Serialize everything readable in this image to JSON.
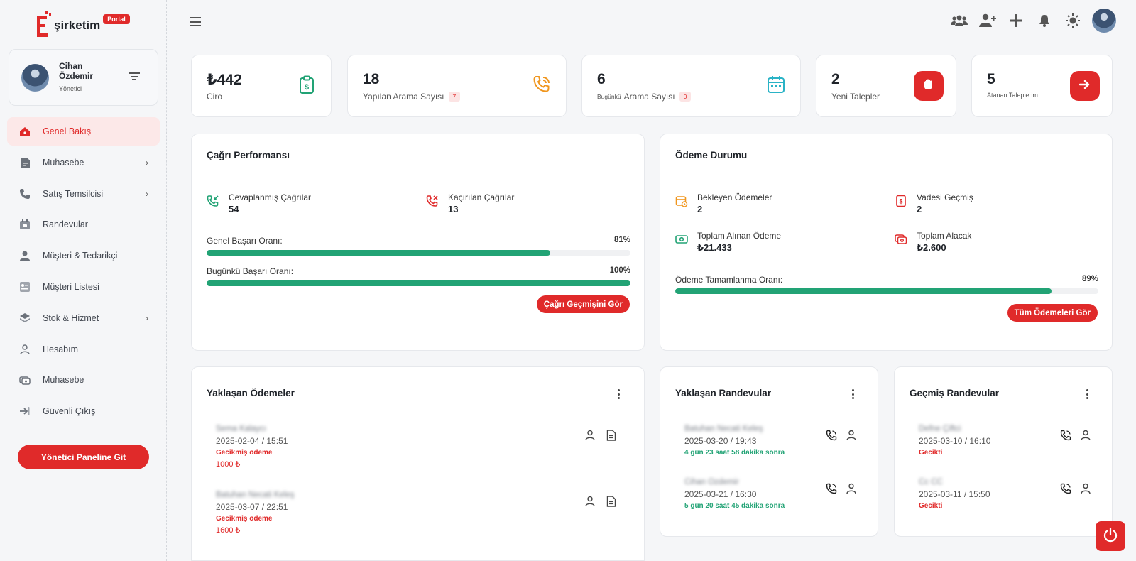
{
  "brand": {
    "name": "şirketim",
    "badge": "Portal",
    "accent": "#e02a2a",
    "success": "#22a375"
  },
  "profile": {
    "name": "Cihan Özdemir",
    "role": "Yönetici"
  },
  "sidebar": {
    "items": [
      {
        "label": "Genel Bakış",
        "icon": "home-icon",
        "active": true,
        "chevron": false
      },
      {
        "label": "Muhasebe",
        "icon": "document-icon",
        "chevron": true
      },
      {
        "label": "Satış Temsilcisi",
        "icon": "phone-icon",
        "chevron": true
      },
      {
        "label": "Randevular",
        "icon": "calendar-icon",
        "chevron": false
      },
      {
        "label": "Müşteri & Tedarikçi",
        "icon": "user-icon",
        "chevron": false
      },
      {
        "label": "Müşteri Listesi",
        "icon": "list-icon",
        "chevron": false
      },
      {
        "label": "Stok & Hizmet",
        "icon": "layers-icon",
        "chevron": true
      },
      {
        "label": "Hesabım",
        "icon": "user-outline-icon",
        "chevron": false
      },
      {
        "label": "Muhasebe",
        "icon": "money-icon",
        "chevron": false
      },
      {
        "label": "Güvenli Çıkış",
        "icon": "logout-icon",
        "chevron": false
      }
    ],
    "admin_button": "Yönetici Paneline Git"
  },
  "stats": [
    {
      "value": "₺442",
      "label": "Ciro",
      "icon": "invoice-dollar-icon"
    },
    {
      "value": "18",
      "label": "Yapılan Arama Sayısı",
      "badge": "7",
      "icon": "phone-call-icon"
    },
    {
      "value": "6",
      "prefix": "Bugünkü",
      "label": "Arama Sayısı",
      "badge": "0",
      "icon": "calendar-icon"
    },
    {
      "value": "2",
      "label": "Yeni Talepler",
      "icon": "hand-icon"
    },
    {
      "value": "5",
      "label": "Atanan Taleplerim",
      "icon": "arrow-right-icon"
    }
  ],
  "call_perf": {
    "title": "Çağrı Performansı",
    "answered_label": "Cevaplanmış Çağrılar",
    "answered_value": "54",
    "missed_label": "Kaçırılan Çağrılar",
    "missed_value": "13",
    "general_label": "Genel Başarı Oranı:",
    "general_pct_text": "81%",
    "general_pct": 81,
    "today_label": "Bugünkü Başarı Oranı:",
    "today_pct_text": "100%",
    "today_pct": 100,
    "button": "Çağrı Geçmişini Gör"
  },
  "payment": {
    "title": "Ödeme Durumu",
    "pending_label": "Bekleyen Ödemeler",
    "pending_value": "2",
    "overdue_label": "Vadesi Geçmiş",
    "overdue_value": "2",
    "received_label": "Toplam Alınan Ödeme",
    "received_value": "₺21.433",
    "receivable_label": "Toplam Alacak",
    "receivable_value": "₺2.600",
    "completion_label": "Ödeme Tamamlanma Oranı:",
    "completion_pct_text": "89%",
    "completion_pct": 89,
    "button": "Tüm Ödemeleri Gör"
  },
  "upcoming_payments": {
    "title": "Yaklaşan Ödemeler",
    "items": [
      {
        "name": "Sema Kalaycı",
        "date": "2025-02-04 / 15:51",
        "status": "Gecikmiş ödeme",
        "amount": "1000 ₺"
      },
      {
        "name": "Batuhan Necati Keleş",
        "date": "2025-03-07 / 22:51",
        "status": "Gecikmiş ödeme",
        "amount": "1600 ₺"
      }
    ]
  },
  "upcoming_appts": {
    "title": "Yaklaşan Randevular",
    "items": [
      {
        "name": "Batuhan Necati Keleş",
        "date": "2025-03-20 / 19:43",
        "note": "4 gün 23 saat 58 dakika sonra"
      },
      {
        "name": "Cihan Özdemir",
        "date": "2025-03-21 / 16:30",
        "note": "5 gün 20 saat 45 dakika sonra"
      }
    ]
  },
  "past_appts": {
    "title": "Geçmiş Randevular",
    "items": [
      {
        "name": "Defne Çiftci",
        "date": "2025-03-10 / 16:10",
        "note": "Gecikti"
      },
      {
        "name": "Cc CC",
        "date": "2025-03-11 / 15:50",
        "note": "Gecikti"
      }
    ]
  }
}
